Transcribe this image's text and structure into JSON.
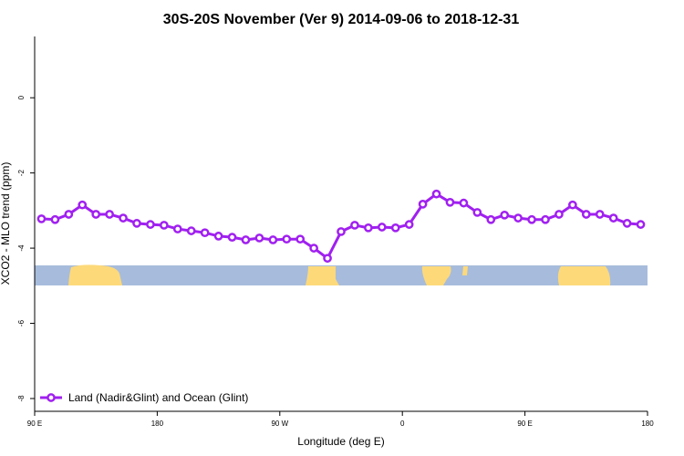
{
  "chart_data": {
    "type": "line",
    "title": "30S-20S November (Ver 9)   2014-09-06 to 2018-12-31",
    "x_label": "Longitude (deg E)",
    "y_label": "XCO2 - MLO trend (ppm)",
    "x": [
      95,
      105,
      115,
      125,
      135,
      145,
      155,
      165,
      175,
      185,
      195,
      205,
      215,
      225,
      235,
      245,
      255,
      265,
      275,
      285,
      295,
      305,
      315,
      325,
      335,
      345,
      355,
      365,
      375,
      385,
      395,
      405,
      415,
      425,
      435,
      445,
      455,
      465,
      475,
      485,
      495,
      505,
      515,
      525,
      535
    ],
    "series": [
      {
        "name": "Land (Nadir&Glint) and Ocean (Glint)",
        "color": "#a020f0",
        "values": [
          -3.22,
          -3.24,
          -3.1,
          -2.85,
          -3.1,
          -3.1,
          -3.2,
          -3.34,
          -3.37,
          -3.39,
          -3.49,
          -3.54,
          -3.59,
          -3.68,
          -3.71,
          -3.78,
          -3.73,
          -3.78,
          -3.76,
          -3.76,
          -4.0,
          -4.27,
          -3.56,
          -3.39,
          -3.46,
          -3.44,
          -3.46,
          -3.37,
          -2.83,
          -2.56,
          -2.78,
          -2.8,
          -3.05,
          -3.24,
          -3.12,
          -3.2,
          -3.24,
          -3.24,
          -3.1,
          -2.85,
          -3.1,
          -3.1,
          -3.2,
          -3.34,
          -3.37
        ]
      }
    ],
    "xlim": [
      90,
      540
    ],
    "xticks": [
      {
        "value": 90,
        "label": "90 E"
      },
      {
        "value": 180,
        "label": "180"
      },
      {
        "value": 270,
        "label": "90 W"
      },
      {
        "value": 360,
        "label": "0"
      },
      {
        "value": 450,
        "label": "90 E"
      },
      {
        "value": 540,
        "label": "180"
      }
    ],
    "ylim": [
      -8.34,
      1.63
    ],
    "yticks": [
      0,
      -2,
      -4,
      -6,
      -8
    ],
    "legend": "bottom-left"
  }
}
